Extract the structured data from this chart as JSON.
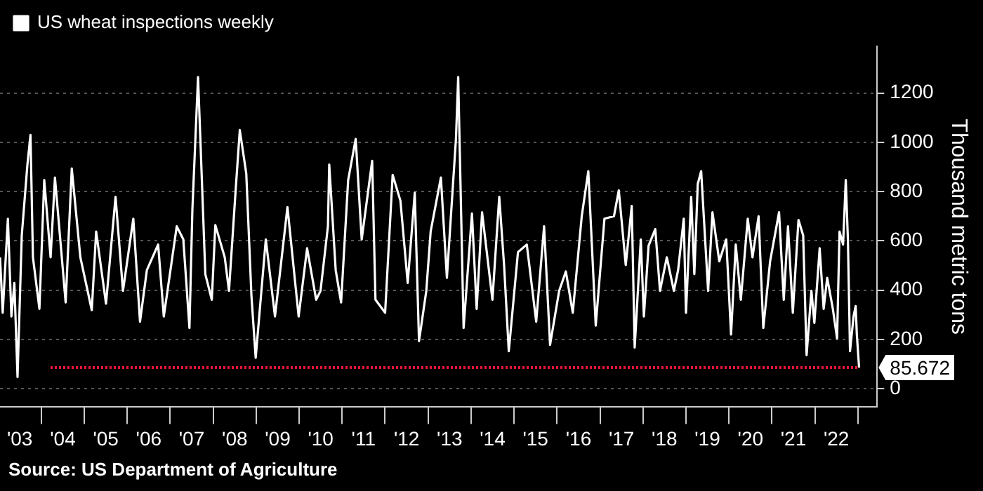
{
  "chart_data": {
    "type": "line",
    "x": [
      "2003-01-15",
      "2003-02-07",
      "2003-03-23",
      "2003-04-22",
      "2003-05-17",
      "2003-06-13",
      "2003-07-19",
      "2003-09-05",
      "2003-10-01",
      "2003-10-22",
      "2003-12-16",
      "2004-01-26",
      "2004-03-20",
      "2004-04-26",
      "2004-07-26",
      "2004-09-16",
      "2004-11-28",
      "2005-03-05",
      "2005-04-11",
      "2005-07-04",
      "2005-09-23",
      "2005-11-25",
      "2006-02-21",
      "2006-04-19",
      "2006-06-16",
      "2006-09-20",
      "2006-11-07",
      "2007-02-25",
      "2007-04-22",
      "2007-06-13",
      "2007-07-08",
      "2007-08-25",
      "2007-09-13",
      "2007-10-26",
      "2007-12-20",
      "2008-01-19",
      "2008-04-08",
      "2008-05-14",
      "2008-07-11",
      "2008-08-14",
      "2008-10-08",
      "2008-11-21",
      "2008-12-27",
      "2009-03-23",
      "2009-06-09",
      "2009-09-23",
      "2009-12-27",
      "2010-03-09",
      "2010-05-25",
      "2010-07-01",
      "2010-09-02",
      "2010-09-13",
      "2010-11-07",
      "2010-12-23",
      "2011-02-21",
      "2011-04-26",
      "2011-06-16",
      "2011-09-13",
      "2011-10-11",
      "2012-01-01",
      "2012-03-05",
      "2012-05-10",
      "2012-07-11",
      "2012-09-09",
      "2012-10-15",
      "2012-12-16",
      "2013-01-22",
      "2013-04-19",
      "2013-06-09",
      "2013-08-25",
      "2013-09-13",
      "2013-10-29",
      "2014-01-08",
      "2014-02-17",
      "2014-04-04",
      "2014-07-01",
      "2014-08-28",
      "2014-10-08",
      "2014-11-17",
      "2015-02-03",
      "2015-04-19",
      "2015-07-08",
      "2015-09-13",
      "2015-11-03",
      "2016-01-19",
      "2016-03-16",
      "2016-05-14",
      "2016-07-29",
      "2016-09-23",
      "2016-11-25",
      "2017-02-07",
      "2017-04-29",
      "2017-06-09",
      "2017-08-07",
      "2017-09-27",
      "2017-10-22",
      "2017-12-13",
      "2018-01-08",
      "2018-02-17",
      "2018-04-15",
      "2018-05-25",
      "2018-07-22",
      "2018-09-20",
      "2018-10-26",
      "2018-12-13",
      "2019-01-01",
      "2019-02-14",
      "2019-03-13",
      "2019-04-11",
      "2019-05-10",
      "2019-07-08",
      "2019-08-14",
      "2019-10-11",
      "2019-12-09",
      "2020-01-19",
      "2020-02-28",
      "2020-04-11",
      "2020-06-09",
      "2020-07-19",
      "2020-09-09",
      "2020-10-19",
      "2020-12-16",
      "2021-03-02",
      "2021-04-11",
      "2021-05-17",
      "2021-06-27",
      "2021-08-14",
      "2021-09-23",
      "2021-10-22",
      "2021-12-02",
      "2021-12-27",
      "2022-02-10",
      "2022-03-16",
      "2022-04-15",
      "2022-06-02",
      "2022-07-08",
      "2022-07-29",
      "2022-08-28",
      "2022-09-20",
      "2022-10-08",
      "2022-10-26",
      "2022-11-25",
      "2022-12-13",
      "2022-12-23",
      "2023-01-11"
    ],
    "series": [
      {
        "name": "US wheat inspections weekly",
        "color": "#ffffff",
        "values": [
          533,
          308,
          690,
          293,
          429,
          47,
          622,
          910,
          1030,
          533,
          324,
          847,
          533,
          857,
          350,
          894,
          533,
          319,
          638,
          345,
          779,
          397,
          690,
          272,
          481,
          585,
          293,
          659,
          606,
          246,
          727,
          1265,
          1024,
          465,
          361,
          664,
          533,
          397,
          815,
          1050,
          873,
          376,
          125,
          606,
          293,
          737,
          293,
          570,
          361,
          397,
          659,
          910,
          481,
          350,
          847,
          1014,
          606,
          925,
          361,
          308,
          868,
          763,
          429,
          795,
          193,
          397,
          638,
          857,
          450,
          1014,
          1265,
          246,
          711,
          324,
          716,
          361,
          779,
          502,
          152,
          554,
          585,
          272,
          659,
          178,
          397,
          476,
          308,
          700,
          883,
          256,
          690,
          700,
          805,
          502,
          742,
          167,
          606,
          293,
          580,
          648,
          397,
          533,
          397,
          481,
          690,
          308,
          779,
          465,
          831,
          883,
          397,
          716,
          517,
          606,
          220,
          585,
          361,
          690,
          533,
          700,
          246,
          517,
          716,
          361,
          659,
          308,
          685,
          622,
          136,
          397,
          267,
          570,
          324,
          450,
          324,
          204,
          638,
          585,
          847,
          606,
          152,
          293,
          335,
          220,
          85.672
        ]
      }
    ],
    "xlim": [
      "2003-01-15",
      "2023-06-14"
    ],
    "xticks": [
      {
        "value": "2003-07-02",
        "label": "'03"
      },
      {
        "value": "2004-01-01",
        "label": null
      },
      {
        "value": "2004-07-02",
        "label": "'04"
      },
      {
        "value": "2005-01-01",
        "label": null
      },
      {
        "value": "2005-07-02",
        "label": "'05"
      },
      {
        "value": "2006-01-01",
        "label": null
      },
      {
        "value": "2006-07-02",
        "label": "'06"
      },
      {
        "value": "2007-01-01",
        "label": null
      },
      {
        "value": "2007-07-02",
        "label": "'07"
      },
      {
        "value": "2008-01-01",
        "label": null
      },
      {
        "value": "2008-07-02",
        "label": "'08"
      },
      {
        "value": "2009-01-01",
        "label": null
      },
      {
        "value": "2009-07-02",
        "label": "'09"
      },
      {
        "value": "2010-01-01",
        "label": null
      },
      {
        "value": "2010-07-02",
        "label": "'10"
      },
      {
        "value": "2011-01-01",
        "label": null
      },
      {
        "value": "2011-07-02",
        "label": "'11"
      },
      {
        "value": "2012-01-01",
        "label": null
      },
      {
        "value": "2012-07-02",
        "label": "'12"
      },
      {
        "value": "2013-01-01",
        "label": null
      },
      {
        "value": "2013-07-02",
        "label": "'13"
      },
      {
        "value": "2014-01-01",
        "label": null
      },
      {
        "value": "2014-07-02",
        "label": "'14"
      },
      {
        "value": "2015-01-01",
        "label": null
      },
      {
        "value": "2015-07-02",
        "label": "'15"
      },
      {
        "value": "2016-01-01",
        "label": null
      },
      {
        "value": "2016-07-02",
        "label": "'16"
      },
      {
        "value": "2017-01-01",
        "label": null
      },
      {
        "value": "2017-07-02",
        "label": "'17"
      },
      {
        "value": "2018-01-01",
        "label": null
      },
      {
        "value": "2018-07-02",
        "label": "'18"
      },
      {
        "value": "2019-01-01",
        "label": null
      },
      {
        "value": "2019-07-02",
        "label": "'19"
      },
      {
        "value": "2020-01-01",
        "label": null
      },
      {
        "value": "2020-07-02",
        "label": "'20"
      },
      {
        "value": "2021-01-01",
        "label": null
      },
      {
        "value": "2021-07-02",
        "label": "'21"
      },
      {
        "value": "2022-01-01",
        "label": null
      },
      {
        "value": "2022-07-02",
        "label": "'22"
      },
      {
        "value": "2023-01-01",
        "label": null
      }
    ],
    "ylim": [
      -75,
      1390
    ],
    "yticks": [
      0,
      200,
      400,
      600,
      800,
      1000,
      1200
    ],
    "ylabel": "Thousand metric tons",
    "grid": "y",
    "legend": "top left",
    "ref_lines": [
      {
        "axis": "y",
        "value": 85.672,
        "label": "85.672",
        "color": "#e8173a",
        "line_style": "dotted"
      }
    ],
    "annotations": [
      "Source: US Department of Agriculture"
    ]
  }
}
